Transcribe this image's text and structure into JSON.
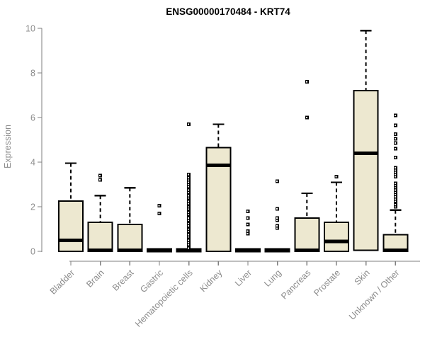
{
  "title": "ENSG00000170484 - KRT74",
  "colors": {
    "background": "#ffffff",
    "box_fill": "#EDE8D0",
    "box_border": "#000000",
    "median": "#000000",
    "whisker": "#000000",
    "outlier": "#000000",
    "axis_line": "#7f7f7f",
    "axis_text": "#8c8c8c",
    "title_text": "#000000"
  },
  "chart_data": {
    "type": "boxplot",
    "title": "ENSG00000170484 - KRT74",
    "xlabel": "",
    "ylabel": "Expression",
    "ylim": [
      0,
      10
    ],
    "y_ticks": [
      0,
      2,
      4,
      6,
      8,
      10
    ],
    "grid": false,
    "legend": "none",
    "categories": [
      "Bladder",
      "Brain",
      "Breast",
      "Gastric",
      "Hematopoietic cells",
      "Kidney",
      "Liver",
      "Lung",
      "Pancreas",
      "Prostate",
      "Skin",
      "Unknown / Other"
    ],
    "series": [
      {
        "name": "Bladder",
        "whisker_low": 0,
        "q1": 0,
        "median": 0.5,
        "q3": 2.25,
        "whisker_high": 3.95,
        "outliers": []
      },
      {
        "name": "Brain",
        "whisker_low": 0,
        "q1": 0,
        "median": 0.05,
        "q3": 1.3,
        "whisker_high": 2.5,
        "outliers": [
          3.2,
          3.4
        ]
      },
      {
        "name": "Breast",
        "whisker_low": 0,
        "q1": 0,
        "median": 0.05,
        "q3": 1.2,
        "whisker_high": 2.85,
        "outliers": []
      },
      {
        "name": "Gastric",
        "whisker_low": 0,
        "q1": 0,
        "median": 0.05,
        "q3": 0.05,
        "whisker_high": 0.05,
        "outliers": [
          1.7,
          2.05
        ]
      },
      {
        "name": "Hematopoietic cells",
        "whisker_low": 0,
        "q1": 0,
        "median": 0.05,
        "q3": 0.05,
        "whisker_high": 0.05,
        "outliers": [
          0.15,
          0.25,
          0.3,
          0.4,
          0.5,
          0.6,
          0.65,
          0.75,
          0.85,
          0.9,
          1.0,
          1.1,
          1.15,
          1.25,
          1.35,
          1.4,
          1.5,
          1.6,
          1.65,
          1.75,
          1.85,
          1.9,
          2.0,
          2.1,
          2.15,
          2.25,
          2.35,
          2.4,
          2.5,
          2.6,
          2.65,
          2.75,
          2.85,
          2.9,
          3.0,
          3.1,
          3.2,
          3.3,
          3.45,
          5.7
        ]
      },
      {
        "name": "Kidney",
        "whisker_low": 0,
        "q1": 0,
        "median": 3.85,
        "q3": 4.65,
        "whisker_high": 5.7,
        "outliers": []
      },
      {
        "name": "Liver",
        "whisker_low": 0,
        "q1": 0,
        "median": 0.05,
        "q3": 0.05,
        "whisker_high": 0.05,
        "outliers": [
          0.8,
          0.9,
          1.2,
          1.5,
          1.8
        ]
      },
      {
        "name": "Lung",
        "whisker_low": 0,
        "q1": 0,
        "median": 0.05,
        "q3": 0.05,
        "whisker_high": 0.05,
        "outliers": [
          1.05,
          1.15,
          1.4,
          1.5,
          1.9,
          3.15
        ]
      },
      {
        "name": "Pancreas",
        "whisker_low": 0,
        "q1": 0,
        "median": 0.05,
        "q3": 1.5,
        "whisker_high": 2.6,
        "outliers": [
          6.0,
          7.6
        ]
      },
      {
        "name": "Prostate",
        "whisker_low": 0,
        "q1": 0,
        "median": 0.45,
        "q3": 1.3,
        "whisker_high": 3.1,
        "outliers": [
          3.35
        ]
      },
      {
        "name": "Skin",
        "whisker_low": 0,
        "q1": 0.05,
        "median": 4.4,
        "q3": 7.2,
        "whisker_high": 9.9,
        "outliers": []
      },
      {
        "name": "Unknown / Other",
        "whisker_low": 0,
        "q1": 0,
        "median": 0.05,
        "q3": 0.75,
        "whisker_high": 1.85,
        "outliers": [
          2.0,
          2.1,
          2.25,
          2.35,
          2.45,
          2.55,
          2.65,
          2.75,
          2.85,
          2.95,
          3.05,
          3.35,
          3.45,
          3.55,
          3.65,
          3.75,
          4.2,
          4.6,
          4.85,
          5.05,
          5.25,
          5.65,
          6.1
        ]
      }
    ]
  }
}
